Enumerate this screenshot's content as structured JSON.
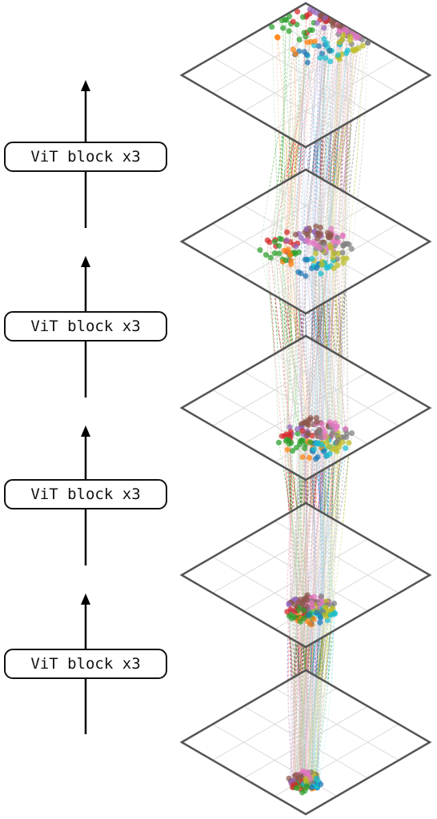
{
  "blocks": [
    {
      "label": "ViT block x3"
    },
    {
      "label": "ViT block x3"
    },
    {
      "label": "ViT block x3"
    },
    {
      "label": "ViT block x3"
    }
  ],
  "colors": {
    "plane_stroke": "#555555",
    "grid": "#d9d9d9",
    "arrow": "#000000",
    "palette": [
      "#1f77b4",
      "#ff7f0e",
      "#2ca02c",
      "#d62728",
      "#9467bd",
      "#8c564b",
      "#e377c2",
      "#7f7f7f",
      "#bcbd22",
      "#17becf"
    ]
  },
  "diagram": {
    "plane_count": 5,
    "tokens_per_plane": 140,
    "line_style": "dashed"
  }
}
